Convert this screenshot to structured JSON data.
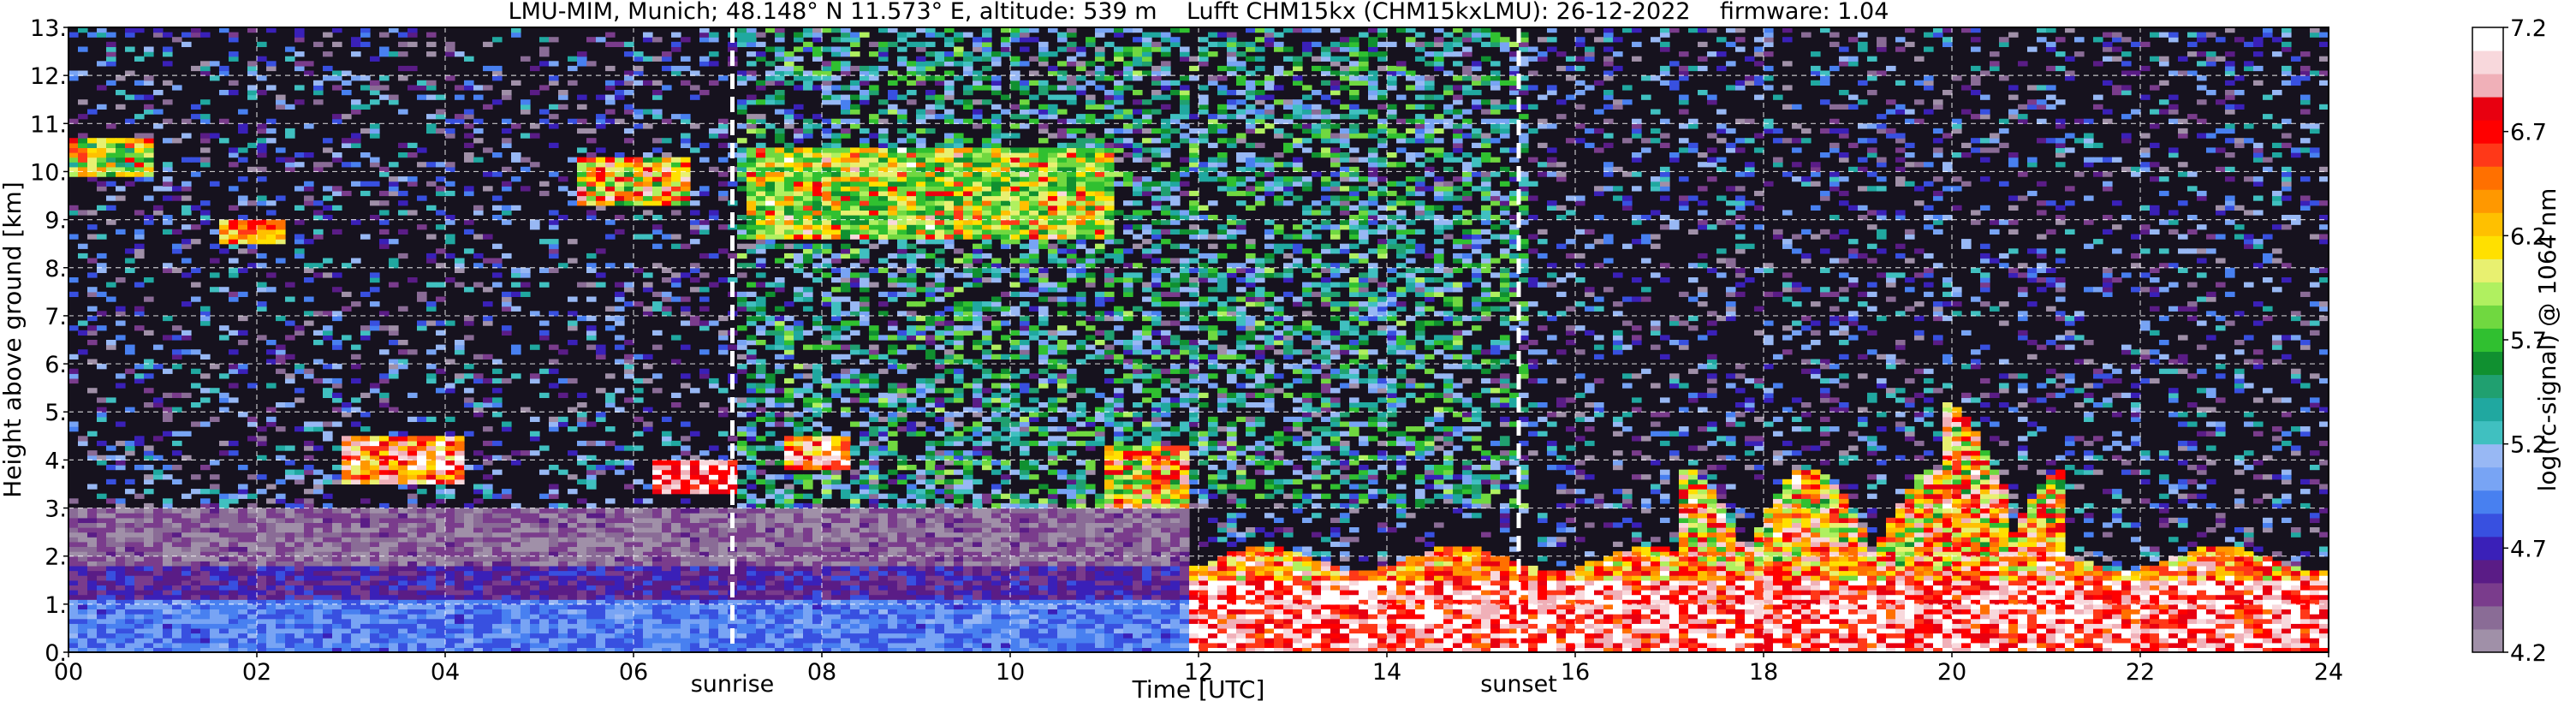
{
  "chart_data": {
    "type": "heatmap",
    "title": "LMU-MIM, Munich; 48.148° N 11.573° E, altitude: 539 m    Lufft CHM15kx (CHM15kxLMU): 26-12-2022    firmware: 1.04",
    "xlabel": "Time [UTC]",
    "ylabel": "Height above ground [km]",
    "xlim": [
      0,
      24
    ],
    "ylim": [
      0,
      13
    ],
    "x_ticks": [
      0,
      2,
      4,
      6,
      8,
      10,
      12,
      14,
      16,
      18,
      20,
      22,
      24
    ],
    "x_tick_labels": [
      "00",
      "02",
      "04",
      "06",
      "08",
      "10",
      "12",
      "14",
      "16",
      "18",
      "20",
      "22",
      "24"
    ],
    "y_ticks": [
      0,
      1,
      2,
      3,
      4,
      5,
      6,
      7,
      8,
      9,
      10,
      11,
      12,
      13
    ],
    "y_tick_labels": [
      "0.",
      "1.",
      "2.",
      "3.",
      "4.",
      "5.",
      "6.",
      "7.",
      "8.",
      "9.",
      "10.",
      "11.",
      "12.",
      "13."
    ],
    "grid": true,
    "events": [
      {
        "label": "sunrise",
        "x": 7.05
      },
      {
        "label": "sunset",
        "x": 15.4
      }
    ],
    "colorbar": {
      "label": "log(rc-signal) @ 1064 nm",
      "range": [
        4.2,
        7.2
      ],
      "ticks": [
        4.2,
        4.7,
        5.2,
        5.7,
        6.2,
        6.7,
        7.2
      ],
      "tick_labels": [
        "4.2",
        "4.7",
        "5.2",
        "5.7",
        "6.2",
        "6.7",
        "7.2"
      ],
      "colors": [
        "#a090a8",
        "#8a6c96",
        "#7a3c8c",
        "#5a1c86",
        "#3a20b8",
        "#3850e0",
        "#4880f0",
        "#78a4f4",
        "#98b8f4",
        "#40c0c0",
        "#20a8a0",
        "#20a070",
        "#109030",
        "#30c030",
        "#70d840",
        "#b0f060",
        "#e8f070",
        "#ffe000",
        "#ffc000",
        "#ff9800",
        "#ff7000",
        "#ff3818",
        "#ff0000",
        "#e80010",
        "#f0b0b8",
        "#f8d8dc",
        "#ffffff"
      ]
    },
    "features": [
      {
        "name": "boundary layer (low signal, blue/purple)",
        "x": [
          0,
          11.8
        ],
        "y": [
          0,
          1.9
        ]
      },
      {
        "name": "low cloud layer (high signal, white/red)",
        "x": [
          11.8,
          24
        ],
        "y": [
          0,
          2.0
        ]
      },
      {
        "name": "cloud patch",
        "x": [
          2.9,
          4.2
        ],
        "y": [
          3.5,
          4.5
        ]
      },
      {
        "name": "cirrus layer",
        "x": [
          7.1,
          11.0
        ],
        "y": [
          8.5,
          10.4
        ]
      },
      {
        "name": "convective cloud tops",
        "x": [
          17.0,
          21.2
        ],
        "y": [
          1.5,
          5.4
        ]
      }
    ]
  }
}
